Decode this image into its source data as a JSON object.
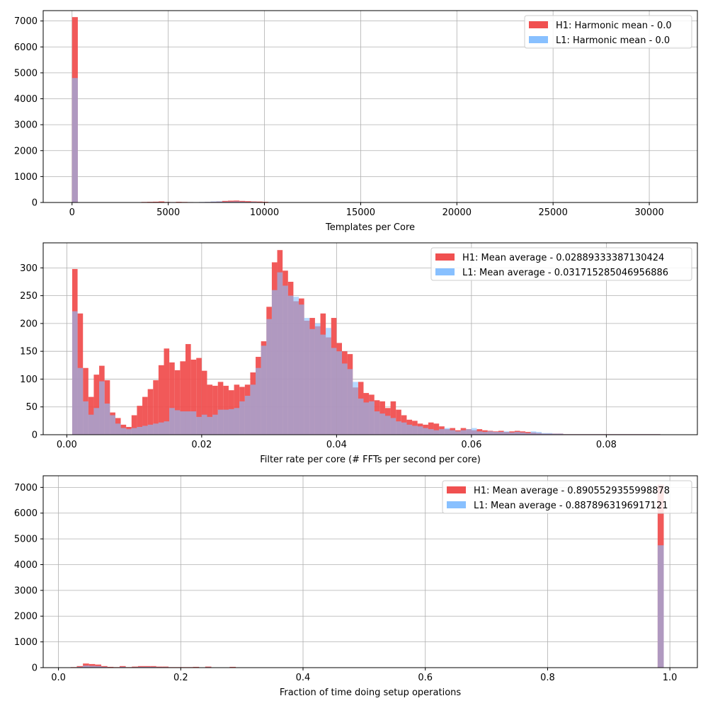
{
  "chart_data": [
    {
      "type": "histogram",
      "xlabel": "Templates per Core",
      "ylabel": "",
      "xlim": [
        -1500,
        32500
      ],
      "ylim": [
        0,
        7400
      ],
      "xticks": [
        0,
        5000,
        10000,
        15000,
        20000,
        25000,
        30000
      ],
      "xtick_labels": [
        "0",
        "5000",
        "10000",
        "15000",
        "20000",
        "25000",
        "30000"
      ],
      "yticks": [
        0,
        1000,
        2000,
        3000,
        4000,
        5000,
        6000,
        7000
      ],
      "ytick_labels": [
        "0",
        "1000",
        "2000",
        "3000",
        "4000",
        "5000",
        "6000",
        "7000"
      ],
      "grid": true,
      "legend_position": "top-right",
      "bins": {
        "start": 0,
        "width": 300,
        "count": 34
      },
      "series": [
        {
          "name": "H1: Harmonic mean  - 0.0",
          "color": "#f05050",
          "counts": [
            7150,
            0,
            0,
            0,
            0,
            0,
            0,
            0,
            0,
            0,
            0,
            0,
            20,
            25,
            30,
            40,
            20,
            15,
            25,
            20,
            15,
            10,
            15,
            20,
            30,
            40,
            60,
            70,
            75,
            60,
            50,
            40,
            35,
            25
          ]
        },
        {
          "name": "L1: Harmonic mean  - 0.0",
          "color": "#88c0ff",
          "counts": [
            4800,
            0,
            0,
            0,
            0,
            0,
            0,
            0,
            0,
            0,
            0,
            0,
            5,
            8,
            10,
            12,
            10,
            8,
            10,
            12,
            15,
            10,
            20,
            25,
            40,
            45,
            30,
            35,
            40,
            30,
            20,
            25,
            15,
            10
          ]
        }
      ]
    },
    {
      "type": "histogram",
      "xlabel": "Filter rate per core (# FFTs per second per core)",
      "ylabel": "",
      "xlim": [
        -0.0035,
        0.0935
      ],
      "ylim": [
        0,
        345
      ],
      "xticks": [
        0.0,
        0.02,
        0.04,
        0.06,
        0.08
      ],
      "xtick_labels": [
        "0.00",
        "0.02",
        "0.04",
        "0.06",
        "0.08"
      ],
      "yticks": [
        0,
        50,
        100,
        150,
        200,
        250,
        300
      ],
      "ytick_labels": [
        "0",
        "50",
        "100",
        "150",
        "200",
        "250",
        "300"
      ],
      "grid": true,
      "legend_position": "top-right",
      "bins": {
        "start": 0.0008,
        "width": 0.0008,
        "count": 109
      },
      "series": [
        {
          "name": "H1: Mean average - 0.02889333387130424",
          "color": "#f05050",
          "counts": [
            298,
            218,
            120,
            68,
            108,
            124,
            98,
            40,
            30,
            18,
            14,
            35,
            52,
            68,
            82,
            98,
            125,
            155,
            130,
            116,
            132,
            163,
            135,
            138,
            115,
            90,
            88,
            95,
            88,
            80,
            90,
            86,
            90,
            112,
            140,
            168,
            230,
            310,
            332,
            295,
            275,
            240,
            245,
            205,
            210,
            195,
            218,
            175,
            210,
            165,
            150,
            145,
            85,
            95,
            75,
            72,
            62,
            60,
            48,
            60,
            45,
            35,
            27,
            25,
            20,
            18,
            22,
            20,
            15,
            10,
            12,
            8,
            12,
            10,
            8,
            10,
            8,
            7,
            6,
            7,
            5,
            6,
            7,
            6,
            5,
            4,
            3,
            2,
            2,
            2,
            2,
            1,
            1,
            1,
            1,
            1,
            1,
            1,
            1,
            1,
            1,
            1,
            1,
            1,
            1,
            1,
            1,
            1,
            1
          ]
        },
        {
          "name": "L1: Mean average - 0.031715285046956886",
          "color": "#88c0ff",
          "counts": [
            222,
            120,
            60,
            36,
            48,
            96,
            56,
            35,
            20,
            12,
            10,
            12,
            14,
            16,
            18,
            20,
            22,
            24,
            48,
            44,
            42,
            42,
            42,
            32,
            36,
            32,
            36,
            45,
            45,
            46,
            48,
            60,
            70,
            90,
            120,
            160,
            208,
            260,
            292,
            268,
            250,
            248,
            234,
            210,
            190,
            200,
            180,
            192,
            156,
            150,
            128,
            118,
            95,
            65,
            58,
            60,
            42,
            38,
            34,
            30,
            24,
            22,
            18,
            16,
            15,
            12,
            10,
            8,
            10,
            12,
            8,
            6,
            8,
            10,
            12,
            6,
            5,
            6,
            5,
            5,
            6,
            4,
            5,
            4,
            3,
            6,
            5,
            3,
            3,
            2,
            2,
            1,
            1,
            1,
            1,
            1,
            1,
            1,
            1,
            1,
            1,
            1,
            1,
            1,
            1,
            1,
            1,
            1,
            1
          ]
        }
      ]
    },
    {
      "type": "histogram",
      "xlabel": "Fraction of time doing setup operations",
      "ylabel": "",
      "xlim": [
        -0.025,
        1.045
      ],
      "ylim": [
        0,
        7450
      ],
      "xticks": [
        0.0,
        0.2,
        0.4,
        0.6,
        0.8,
        1.0
      ],
      "xtick_labels": [
        "0.0",
        "0.2",
        "0.4",
        "0.6",
        "0.8",
        "1.0"
      ],
      "yticks": [
        0,
        1000,
        2000,
        3000,
        4000,
        5000,
        6000,
        7000
      ],
      "ytick_labels": [
        "0",
        "1000",
        "2000",
        "3000",
        "4000",
        "5000",
        "6000",
        "7000"
      ],
      "grid": true,
      "legend_position": "top-right",
      "bins": {
        "start": 0.02,
        "width": 0.01,
        "count": 97
      },
      "series": [
        {
          "name": "H1: Mean average - 0.8905529355998878",
          "color": "#f05050",
          "counts": [
            20,
            60,
            160,
            140,
            120,
            60,
            30,
            20,
            60,
            20,
            40,
            60,
            60,
            60,
            40,
            40,
            20,
            20,
            20,
            20,
            30,
            10,
            40,
            10,
            10,
            10,
            30,
            10,
            10,
            10,
            5,
            5,
            0,
            0,
            0,
            0,
            0,
            0,
            0,
            0,
            0,
            0,
            0,
            0,
            0,
            0,
            0,
            0,
            0,
            0,
            0,
            0,
            0,
            0,
            0,
            0,
            0,
            0,
            0,
            0,
            0,
            0,
            0,
            0,
            0,
            0,
            0,
            0,
            0,
            0,
            0,
            0,
            0,
            0,
            0,
            0,
            0,
            0,
            0,
            0,
            0,
            0,
            0,
            0,
            0,
            0,
            0,
            0,
            0,
            0,
            0,
            0,
            0,
            0,
            0,
            0,
            7100
          ]
        },
        {
          "name": "L1: Mean average - 0.8878963196917121",
          "color": "#88c0ff",
          "counts": [
            10,
            30,
            80,
            70,
            60,
            30,
            15,
            10,
            30,
            10,
            20,
            30,
            30,
            30,
            20,
            20,
            10,
            10,
            10,
            10,
            15,
            5,
            20,
            5,
            5,
            5,
            15,
            5,
            5,
            5,
            2,
            2,
            0,
            0,
            0,
            0,
            0,
            0,
            0,
            0,
            0,
            0,
            0,
            0,
            0,
            0,
            0,
            0,
            0,
            0,
            0,
            0,
            0,
            0,
            0,
            0,
            0,
            0,
            0,
            0,
            0,
            0,
            0,
            0,
            0,
            0,
            0,
            0,
            0,
            0,
            0,
            0,
            0,
            0,
            0,
            0,
            0,
            0,
            0,
            0,
            0,
            0,
            0,
            0,
            0,
            0,
            0,
            0,
            0,
            0,
            0,
            0,
            0,
            0,
            0,
            0,
            4750
          ]
        }
      ]
    }
  ]
}
